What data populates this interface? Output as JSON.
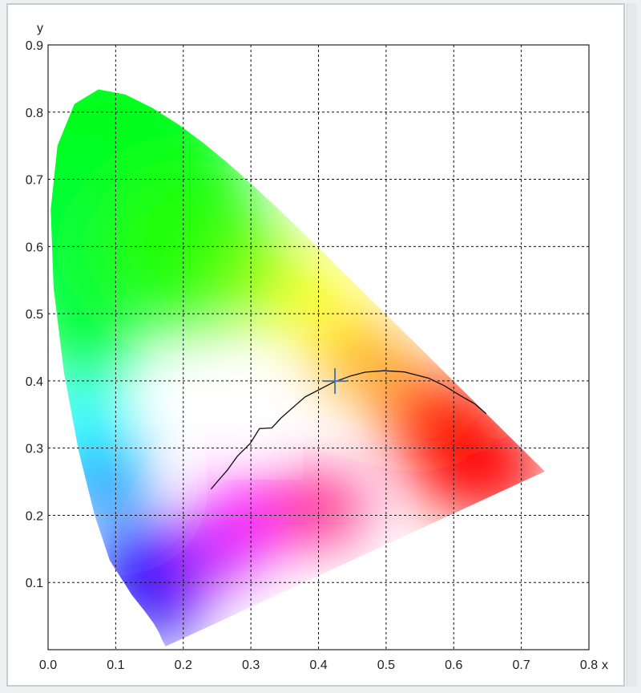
{
  "chart_data": {
    "type": "chromaticity-diagram",
    "xlabel": "x",
    "ylabel": "y",
    "xlim": [
      0.0,
      0.8
    ],
    "ylim": [
      0.0,
      0.9
    ],
    "x_ticks": [
      "0.0",
      "0.1",
      "0.2",
      "0.3",
      "0.4",
      "0.5",
      "0.6",
      "0.7",
      "0.8"
    ],
    "y_ticks": [
      "0.1",
      "0.2",
      "0.3",
      "0.4",
      "0.5",
      "0.6",
      "0.7",
      "0.8",
      "0.9"
    ],
    "grid": true,
    "grid_style": "dotted",
    "spectral_locus": [
      [
        0.1741,
        0.005
      ],
      [
        0.1738,
        0.0049
      ],
      [
        0.1719,
        0.0087
      ],
      [
        0.1689,
        0.0141
      ],
      [
        0.1644,
        0.0248
      ],
      [
        0.1566,
        0.0384
      ],
      [
        0.144,
        0.056
      ],
      [
        0.1241,
        0.0812
      ],
      [
        0.0913,
        0.1327
      ],
      [
        0.0687,
        0.2007
      ],
      [
        0.0454,
        0.295
      ],
      [
        0.0235,
        0.4127
      ],
      [
        0.0082,
        0.5384
      ],
      [
        0.0039,
        0.6548
      ],
      [
        0.0139,
        0.7502
      ],
      [
        0.0389,
        0.812
      ],
      [
        0.0743,
        0.8338
      ],
      [
        0.1142,
        0.8262
      ],
      [
        0.1547,
        0.8059
      ],
      [
        0.1929,
        0.7816
      ],
      [
        0.2296,
        0.7543
      ],
      [
        0.2658,
        0.7243
      ],
      [
        0.3016,
        0.6923
      ],
      [
        0.3373,
        0.6589
      ],
      [
        0.3731,
        0.6245
      ],
      [
        0.4087,
        0.5896
      ],
      [
        0.4441,
        0.5547
      ],
      [
        0.4788,
        0.5202
      ],
      [
        0.5125,
        0.4866
      ],
      [
        0.5448,
        0.4544
      ],
      [
        0.5752,
        0.4242
      ],
      [
        0.6029,
        0.3965
      ],
      [
        0.627,
        0.3725
      ],
      [
        0.6482,
        0.3514
      ],
      [
        0.6658,
        0.334
      ],
      [
        0.6801,
        0.3197
      ],
      [
        0.6915,
        0.3083
      ],
      [
        0.7006,
        0.2993
      ],
      [
        0.7079,
        0.292
      ],
      [
        0.714,
        0.2859
      ],
      [
        0.719,
        0.2809
      ],
      [
        0.723,
        0.277
      ],
      [
        0.726,
        0.274
      ],
      [
        0.7283,
        0.2717
      ],
      [
        0.73,
        0.27
      ],
      [
        0.7347,
        0.2653
      ]
    ],
    "planckian_locus": [
      [
        0.6482,
        0.351
      ],
      [
        0.631,
        0.366
      ],
      [
        0.61,
        0.378
      ],
      [
        0.586,
        0.393
      ],
      [
        0.563,
        0.404
      ],
      [
        0.527,
        0.4133
      ],
      [
        0.497,
        0.4152
      ],
      [
        0.469,
        0.413
      ],
      [
        0.4476,
        0.4074
      ],
      [
        0.422,
        0.398
      ],
      [
        0.397,
        0.385
      ],
      [
        0.38,
        0.376
      ],
      [
        0.3605,
        0.359
      ],
      [
        0.3448,
        0.345
      ],
      [
        0.331,
        0.33
      ],
      [
        0.3127,
        0.329
      ],
      [
        0.299,
        0.307
      ],
      [
        0.28,
        0.288
      ],
      [
        0.265,
        0.267
      ],
      [
        0.252,
        0.252
      ],
      [
        0.241,
        0.239
      ]
    ],
    "marker": {
      "x": 0.4244,
      "y": 0.3997,
      "color": "#4f79a6",
      "symbol": "plus"
    }
  }
}
